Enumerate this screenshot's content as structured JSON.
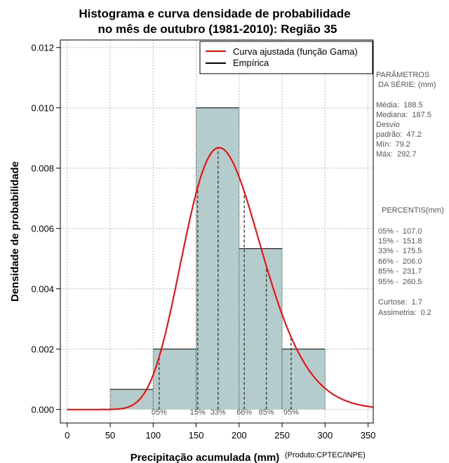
{
  "chart_data": {
    "type": "bar",
    "title_line1": "Histograma e curva densidade de probabilidade",
    "title_line2": "no mês de outubro (1981-2010): Região 35",
    "xlabel": "Precipitação acumulada (mm)",
    "ylabel": "Densidade de probabilidade",
    "credit": "(Produto:CPTEC/INPE)",
    "xlim": [
      -8,
      356
    ],
    "ylim": [
      -0.00045,
      0.01225
    ],
    "x_ticks": [
      0,
      50,
      100,
      150,
      200,
      250,
      300,
      350
    ],
    "y_ticks": [
      0.0,
      0.002,
      0.004,
      0.006,
      0.008,
      0.01,
      0.012
    ],
    "y_tick_labels": [
      "0.000",
      "0.002",
      "0.004",
      "0.006",
      "0.008",
      "0.010",
      "0.012"
    ],
    "grid": true,
    "bins": [
      {
        "from": 50,
        "to": 100,
        "density": 0.000667
      },
      {
        "from": 100,
        "to": 150,
        "density": 0.002
      },
      {
        "from": 150,
        "to": 200,
        "density": 0.01
      },
      {
        "from": 200,
        "to": 250,
        "density": 0.00533
      },
      {
        "from": 250,
        "to": 300,
        "density": 0.002
      }
    ],
    "gamma_fit": {
      "mean": 188.5,
      "sd": 47.2,
      "curve_end": 356
    },
    "percentile_markers": [
      {
        "label": "05%",
        "value": 107.0
      },
      {
        "label": "15%",
        "value": 151.8
      },
      {
        "label": "33%",
        "value": 175.5
      },
      {
        "label": "66%",
        "value": 206.0
      },
      {
        "label": "85%",
        "value": 231.7
      },
      {
        "label": "95%",
        "value": 260.5
      }
    ],
    "legend": {
      "position": "top-right",
      "items": [
        {
          "label": "Curva ajustada (função Gama)",
          "color": "#ff0000"
        },
        {
          "label": "Empírica",
          "color": "#000000"
        }
      ]
    },
    "colors": {
      "bar_fill": "#b4cccc",
      "curve": "#ff0000",
      "grid": "#bbbbbb",
      "marker": "#444444"
    }
  },
  "sidebar": {
    "params_title_1": "PARÂMETROS",
    "params_title_2": " DA SÉRIE: (mm)",
    "media": "Média:  188.5",
    "mediana": "Mediana:  187.5",
    "desvio": "Desvio",
    "padrao": "padrão:  47.2",
    "min": "Mín:  79.2",
    "max": "Máx:  292.7",
    "percentis_title": "PERCENTIS(mm)",
    "percentis": [
      "05% -  107.0",
      "15% -  151.8",
      "33% -  175.5",
      "66% -  206.0",
      "85% -  231.7",
      "95% -  260.5"
    ],
    "curtose": "Curtose:  1.7",
    "assimetria": "Assimetria:  0.2"
  }
}
